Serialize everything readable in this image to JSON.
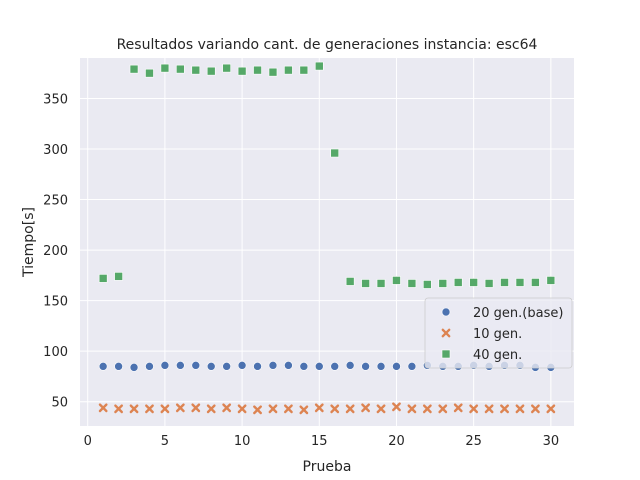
{
  "chart_data": {
    "type": "scatter",
    "title": "Resultados variando cant. de generaciones instancia: esc64",
    "xlabel": "Prueba",
    "ylabel": "Tiempo[s]",
    "xlim": [
      -0.5,
      31.5
    ],
    "ylim": [
      26,
      390
    ],
    "xticks": [
      "0",
      "5",
      "10",
      "15",
      "20",
      "25",
      "30"
    ],
    "yticks": [
      "50",
      "100",
      "150",
      "200",
      "250",
      "300",
      "350"
    ],
    "grid": true,
    "legend_position": "lower-right",
    "colors": {
      "background": "#eaeaf2",
      "grid": "#ffffff",
      "series_20": "#4c72b0",
      "series_10": "#dd8452",
      "series_40": "#55a868"
    },
    "series": [
      {
        "name": "20 gen.(base)",
        "marker": "circle",
        "x": [
          1,
          2,
          3,
          4,
          5,
          6,
          7,
          8,
          9,
          10,
          11,
          12,
          13,
          14,
          15,
          16,
          17,
          18,
          19,
          20,
          21,
          22,
          23,
          24,
          25,
          26,
          27,
          28,
          29,
          30
        ],
        "y": [
          85,
          85,
          84,
          85,
          86,
          86,
          86,
          85,
          85,
          86,
          85,
          86,
          86,
          85,
          85,
          85,
          86,
          85,
          85,
          85,
          85,
          86,
          85,
          85,
          86,
          85,
          86,
          86,
          84,
          84
        ]
      },
      {
        "name": "10 gen.",
        "marker": "x",
        "x": [
          1,
          2,
          3,
          4,
          5,
          6,
          7,
          8,
          9,
          10,
          11,
          12,
          13,
          14,
          15,
          16,
          17,
          18,
          19,
          20,
          21,
          22,
          23,
          24,
          25,
          26,
          27,
          28,
          29,
          30
        ],
        "y": [
          44,
          43,
          43,
          43,
          43,
          44,
          44,
          43,
          44,
          43,
          42,
          43,
          43,
          42,
          44,
          43,
          43,
          44,
          43,
          45,
          43,
          43,
          43,
          44,
          43,
          43,
          43,
          43,
          43,
          43
        ]
      },
      {
        "name": "40 gen.",
        "marker": "square",
        "x": [
          1,
          2,
          3,
          4,
          5,
          6,
          7,
          8,
          9,
          10,
          11,
          12,
          13,
          14,
          15,
          16,
          17,
          18,
          19,
          20,
          21,
          22,
          23,
          24,
          25,
          26,
          27,
          28,
          29,
          30
        ],
        "y": [
          172,
          174,
          379,
          375,
          380,
          379,
          378,
          377,
          380,
          377,
          378,
          376,
          378,
          378,
          382,
          296,
          169,
          167,
          167,
          170,
          167,
          166,
          167,
          168,
          168,
          167,
          168,
          168,
          168,
          170
        ]
      }
    ]
  }
}
